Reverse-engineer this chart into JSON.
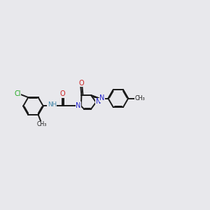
{
  "bg": "#e8e8ec",
  "bond_color": "#1a1a1a",
  "bond_lw": 1.4,
  "dbo": 0.032,
  "colors": {
    "N": "#2222cc",
    "O": "#cc2222",
    "Cl": "#22aa22",
    "C": "#1a1a1a",
    "NH": "#4488aa"
  },
  "fs": 7.0,
  "xlim": [
    0.0,
    10.0
  ],
  "ylim": [
    3.2,
    7.2
  ]
}
